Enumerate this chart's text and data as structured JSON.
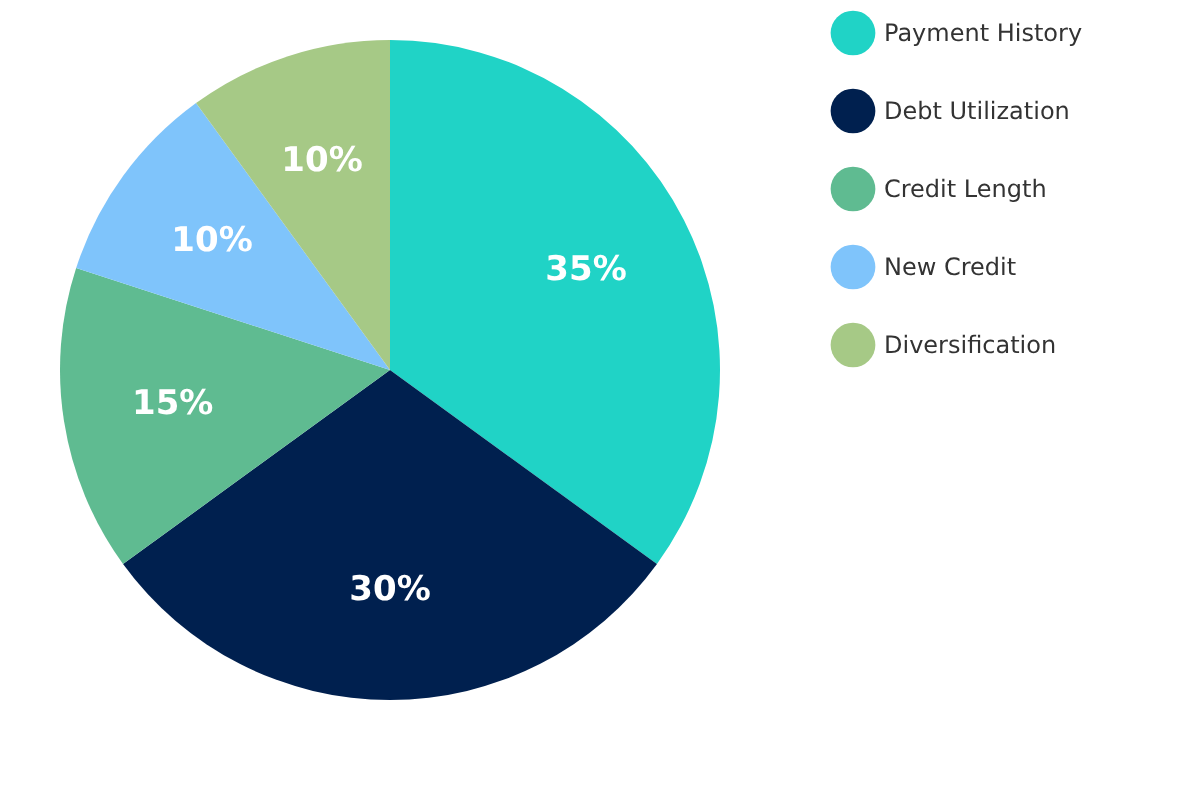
{
  "chart_data": {
    "type": "pie",
    "categories": [
      "Payment History",
      "Debt Utilization",
      "Credit Length",
      "New Credit",
      "Diversification"
    ],
    "values": [
      35,
      30,
      15,
      10,
      10
    ],
    "colors": [
      "#20d3c6",
      "#00204f",
      "#5fbb91",
      "#7fc4fb",
      "#a6c986"
    ],
    "value_labels": [
      "35%",
      "30%",
      "15%",
      "10%",
      "10%"
    ],
    "legend": "right"
  }
}
